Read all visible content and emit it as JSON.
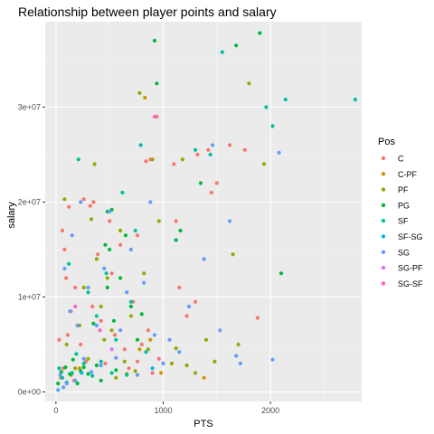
{
  "chart_data": {
    "type": "scatter",
    "title": "Relationship between player points and salary",
    "xlabel": "PTS",
    "ylabel": "salary",
    "xlim": [
      -100,
      2850
    ],
    "ylim": [
      -1000000,
      39000000
    ],
    "x_ticks": [
      0,
      1000,
      2000
    ],
    "x_tick_labels": [
      "0",
      "1000",
      "2000"
    ],
    "y_ticks": [
      0,
      10000000,
      20000000,
      30000000
    ],
    "y_tick_labels": [
      "0e+00",
      "1e+07",
      "2e+07",
      "3e+07"
    ],
    "grid": true,
    "legend": {
      "title": "Pos",
      "placement": "right"
    },
    "series": [
      {
        "name": "C",
        "color": "#F8766D",
        "points": [
          [
            30,
            5500000
          ],
          [
            45,
            1500000
          ],
          [
            60,
            17000000
          ],
          [
            70,
            2500000
          ],
          [
            80,
            15000000
          ],
          [
            95,
            12000000
          ],
          [
            110,
            6000000
          ],
          [
            120,
            19500000
          ],
          [
            140,
            8500000
          ],
          [
            150,
            2000000
          ],
          [
            170,
            1200000
          ],
          [
            180,
            11000000
          ],
          [
            200,
            7000000
          ],
          [
            230,
            5000000
          ],
          [
            260,
            20300000
          ],
          [
            280,
            3200000
          ],
          [
            320,
            19600000
          ],
          [
            340,
            9000000
          ],
          [
            390,
            14500000
          ],
          [
            420,
            7500000
          ],
          [
            460,
            3000000
          ],
          [
            500,
            18000000
          ],
          [
            520,
            12500000
          ],
          [
            550,
            6000000
          ],
          [
            600,
            15500000
          ],
          [
            640,
            4500000
          ],
          [
            680,
            2500000
          ],
          [
            720,
            9500000
          ],
          [
            760,
            16500000
          ],
          [
            800,
            5000000
          ],
          [
            840,
            24300000
          ],
          [
            860,
            6500000
          ],
          [
            880,
            24500000
          ],
          [
            900,
            2000000
          ],
          [
            940,
            29000000
          ],
          [
            960,
            3500000
          ],
          [
            1100,
            24000000
          ],
          [
            1120,
            18000000
          ],
          [
            1150,
            11000000
          ],
          [
            1220,
            8000000
          ],
          [
            1320,
            25000000
          ],
          [
            1420,
            25500000
          ],
          [
            1500,
            22000000
          ],
          [
            1620,
            26000000
          ],
          [
            1760,
            25500000
          ],
          [
            1880,
            7800000
          ],
          [
            1450,
            21000000
          ],
          [
            1300,
            9500000
          ],
          [
            760,
            3200000
          ],
          [
            350,
            20000000
          ]
        ]
      },
      {
        "name": "C-PF",
        "color": "#D39200",
        "points": [
          [
            220,
            2500000
          ],
          [
            660,
            1900000
          ],
          [
            780,
            4500000
          ],
          [
            830,
            31000000
          ],
          [
            880,
            5500000
          ],
          [
            1380,
            1500000
          ],
          [
            980,
            2000000
          ]
        ]
      },
      {
        "name": "PF",
        "color": "#93AA00",
        "points": [
          [
            80,
            20300000
          ],
          [
            100,
            5000000
          ],
          [
            140,
            1800000
          ],
          [
            180,
            2500000
          ],
          [
            220,
            7000000
          ],
          [
            260,
            11000000
          ],
          [
            300,
            3500000
          ],
          [
            330,
            18200000
          ],
          [
            360,
            24000000
          ],
          [
            380,
            14000000
          ],
          [
            420,
            9000000
          ],
          [
            450,
            5500000
          ],
          [
            480,
            12000000
          ],
          [
            520,
            6500000
          ],
          [
            560,
            1500000
          ],
          [
            600,
            17000000
          ],
          [
            640,
            3200000
          ],
          [
            700,
            8000000
          ],
          [
            740,
            2200000
          ],
          [
            780,
            31500000
          ],
          [
            820,
            12500000
          ],
          [
            860,
            4500000
          ],
          [
            900,
            24500000
          ],
          [
            960,
            18000000
          ],
          [
            1080,
            3000000
          ],
          [
            1120,
            4600000
          ],
          [
            1180,
            24500000
          ],
          [
            1220,
            2800000
          ],
          [
            1400,
            5500000
          ],
          [
            1480,
            3200000
          ],
          [
            1650,
            14500000
          ],
          [
            1800,
            32500000
          ],
          [
            1940,
            24000000
          ],
          [
            1700,
            5000000
          ],
          [
            1300,
            2000000
          ]
        ]
      },
      {
        "name": "PG",
        "color": "#00BA38",
        "points": [
          [
            20,
            900000
          ],
          [
            50,
            2100000
          ],
          [
            90,
            2600000
          ],
          [
            130,
            1900000
          ],
          [
            160,
            3400000
          ],
          [
            200,
            900000
          ],
          [
            230,
            2200000
          ],
          [
            260,
            2600000
          ],
          [
            300,
            1900000
          ],
          [
            350,
            7200000
          ],
          [
            380,
            2800000
          ],
          [
            420,
            1200000
          ],
          [
            460,
            15500000
          ],
          [
            480,
            19000000
          ],
          [
            500,
            15000000
          ],
          [
            520,
            19200000
          ],
          [
            540,
            7500000
          ],
          [
            560,
            2300000
          ],
          [
            600,
            12000000
          ],
          [
            650,
            16500000
          ],
          [
            700,
            9000000
          ],
          [
            760,
            5500000
          ],
          [
            800,
            8200000
          ],
          [
            920,
            37000000
          ],
          [
            940,
            32500000
          ],
          [
            1120,
            16000000
          ],
          [
            1160,
            17000000
          ],
          [
            1350,
            22000000
          ],
          [
            1680,
            36500000
          ],
          [
            1900,
            37800000
          ],
          [
            2100,
            12500000
          ],
          [
            480,
            11000000
          ]
        ]
      },
      {
        "name": "SF",
        "color": "#00C19F",
        "points": [
          [
            30,
            2500000
          ],
          [
            60,
            1500000
          ],
          [
            100,
            1000000
          ],
          [
            120,
            13500000
          ],
          [
            150,
            2000000
          ],
          [
            190,
            4000000
          ],
          [
            210,
            24500000
          ],
          [
            260,
            3000000
          ],
          [
            300,
            10500000
          ],
          [
            340,
            1700000
          ],
          [
            380,
            8000000
          ],
          [
            420,
            3200000
          ],
          [
            470,
            12500000
          ],
          [
            520,
            2000000
          ],
          [
            560,
            5500000
          ],
          [
            620,
            21000000
          ],
          [
            660,
            1800000
          ],
          [
            700,
            9500000
          ],
          [
            740,
            17000000
          ],
          [
            790,
            26000000
          ],
          [
            840,
            4200000
          ],
          [
            1300,
            25500000
          ],
          [
            1440,
            25000000
          ],
          [
            1550,
            35800000
          ],
          [
            1960,
            30000000
          ],
          [
            2020,
            28000000
          ],
          [
            2140,
            30800000
          ],
          [
            2790,
            30800000
          ]
        ]
      },
      {
        "name": "SF-SG",
        "color": "#00B9E3",
        "points": [
          [
            900,
            2500000
          ],
          [
            240,
            2000000
          ]
        ]
      },
      {
        "name": "SG",
        "color": "#619CFF",
        "points": [
          [
            20,
            200000
          ],
          [
            40,
            1800000
          ],
          [
            70,
            500000
          ],
          [
            80,
            13000000
          ],
          [
            100,
            900000
          ],
          [
            130,
            8500000
          ],
          [
            150,
            16500000
          ],
          [
            180,
            1200000
          ],
          [
            200,
            7000000
          ],
          [
            230,
            20000000
          ],
          [
            260,
            3500000
          ],
          [
            300,
            11000000
          ],
          [
            330,
            2100000
          ],
          [
            380,
            7000000
          ],
          [
            420,
            2800000
          ],
          [
            450,
            13000000
          ],
          [
            500,
            19000000
          ],
          [
            560,
            3600000
          ],
          [
            600,
            6500000
          ],
          [
            660,
            10500000
          ],
          [
            700,
            15000000
          ],
          [
            760,
            1800000
          ],
          [
            820,
            11500000
          ],
          [
            880,
            20000000
          ],
          [
            920,
            6000000
          ],
          [
            1000,
            3000000
          ],
          [
            1060,
            5500000
          ],
          [
            1150,
            4200000
          ],
          [
            1240,
            9000000
          ],
          [
            1380,
            14000000
          ],
          [
            1460,
            26000000
          ],
          [
            1530,
            6500000
          ],
          [
            1620,
            18000000
          ],
          [
            1680,
            3800000
          ],
          [
            1720,
            3000000
          ],
          [
            2080,
            25200000
          ],
          [
            2020,
            3400000
          ]
        ]
      },
      {
        "name": "SG-PF",
        "color": "#DB72FB",
        "points": [
          [
            520,
            4500000
          ]
        ]
      },
      {
        "name": "SG-SF",
        "color": "#FF61C3",
        "points": [
          [
            410,
            6500000
          ],
          [
            180,
            9000000
          ],
          [
            920,
            29000000
          ]
        ]
      }
    ]
  }
}
